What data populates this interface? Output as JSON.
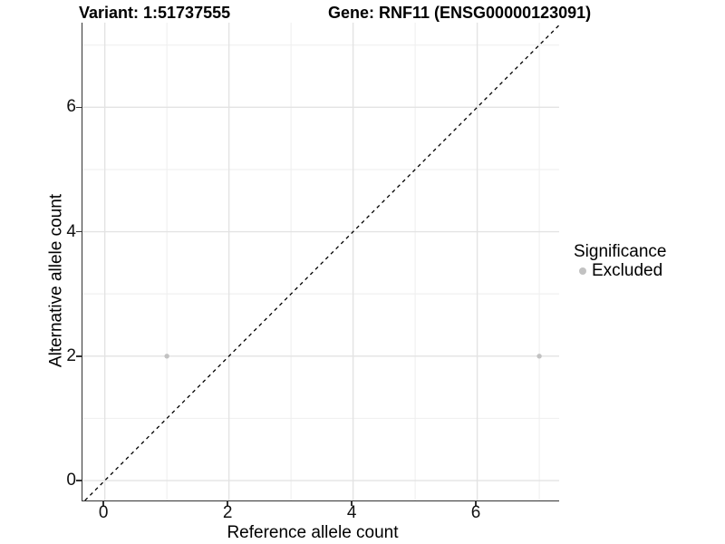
{
  "titles": {
    "left": "Variant: 1:51737555",
    "right": "Gene: RNF11 (ENSG00000123091)"
  },
  "axes": {
    "x": {
      "label": "Reference allele count"
    },
    "y": {
      "label": "Alternative allele count"
    }
  },
  "legend": {
    "title": "Significance",
    "entries": [
      {
        "label": "Excluded",
        "color": "#c2c2c2"
      }
    ]
  },
  "chart_data": {
    "type": "scatter",
    "title": "Variant: 1:51737555    Gene: RNF11 (ENSG00000123091)",
    "xlabel": "Reference allele count",
    "ylabel": "Alternative allele count",
    "x_ticks": [
      0,
      2,
      4,
      6
    ],
    "y_ticks": [
      0,
      2,
      4,
      6
    ],
    "x_minor_gridlines": [
      1,
      3,
      5,
      7
    ],
    "y_minor_gridlines": [
      1,
      3,
      5,
      7
    ],
    "xlim": [
      -0.36,
      7.32
    ],
    "ylim": [
      -0.32,
      7.36
    ],
    "points": [
      {
        "x": 1,
        "y": 2,
        "significance": "Excluded"
      },
      {
        "x": 7,
        "y": 2,
        "significance": "Excluded"
      }
    ],
    "reference_line": {
      "slope": 1,
      "intercept": 0,
      "linetype": "dashed",
      "color": "#000000"
    },
    "legend_position": "right",
    "grid": true,
    "colors": {
      "point": "#c2c2c2",
      "grid_major": "#e3e3e3",
      "grid_minor": "#eeeeee",
      "axis_line": "#333333",
      "dashed_line": "#000000"
    }
  }
}
